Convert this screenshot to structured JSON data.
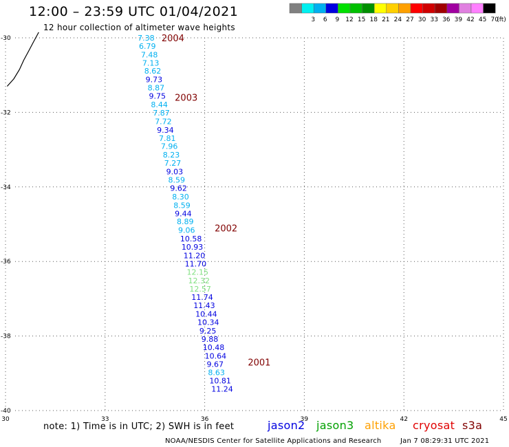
{
  "header": {
    "title": "12:00 – 23:59 UTC 01/04/2021",
    "subtitle": "12 hour collection of altimeter wave heights"
  },
  "legend": {
    "unit": "(ft)",
    "bins": [
      {
        "color": "#808080",
        "label": ""
      },
      {
        "color": "#00f0f0",
        "label": "3"
      },
      {
        "color": "#00b0f0",
        "label": "6"
      },
      {
        "color": "#0000e0",
        "label": "9"
      },
      {
        "color": "#00e000",
        "label": "12"
      },
      {
        "color": "#00c000",
        "label": "15"
      },
      {
        "color": "#009000",
        "label": "18"
      },
      {
        "color": "#ffff00",
        "label": "21"
      },
      {
        "color": "#ffd000",
        "label": "24"
      },
      {
        "color": "#ffa000",
        "label": "27"
      },
      {
        "color": "#ff0000",
        "label": "30"
      },
      {
        "color": "#d00000",
        "label": "33"
      },
      {
        "color": "#a00000",
        "label": "36"
      },
      {
        "color": "#a000a0",
        "label": "39"
      },
      {
        "color": "#e080e0",
        "label": "42"
      },
      {
        "color": "#ff80ff",
        "label": "45"
      },
      {
        "color": "#000000",
        "label": "70"
      }
    ]
  },
  "map": {
    "lon_range": [
      30,
      45
    ],
    "lat_range": [
      -40,
      -30
    ],
    "x_ticks": [
      "30",
      "33",
      "36",
      "39",
      "42",
      "45"
    ],
    "y_ticks": [
      "-30",
      "-32",
      "-34",
      "-36",
      "-38",
      "-40"
    ],
    "grid": "dotted"
  },
  "track_labels": [
    {
      "text": "2004",
      "lon": 34.7,
      "lat": -30.0
    },
    {
      "text": "2003",
      "lon": 35.1,
      "lat": -31.6
    },
    {
      "text": "2002",
      "lon": 36.3,
      "lat": -35.1
    },
    {
      "text": "2001",
      "lon": 37.3,
      "lat": -38.7
    }
  ],
  "observations": [
    {
      "swh": "7.38",
      "lon": 33.98,
      "lat": -30.0,
      "color": "#00b0f0"
    },
    {
      "swh": "6.79",
      "lon": 34.02,
      "lat": -30.22,
      "color": "#00b0f0"
    },
    {
      "swh": "7.48",
      "lon": 34.08,
      "lat": -30.45,
      "color": "#00b0f0"
    },
    {
      "swh": "7.13",
      "lon": 34.12,
      "lat": -30.67,
      "color": "#00b0f0"
    },
    {
      "swh": "8.62",
      "lon": 34.18,
      "lat": -30.89,
      "color": "#00b0f0"
    },
    {
      "swh": "9.73",
      "lon": 34.22,
      "lat": -31.12,
      "color": "#0000e0"
    },
    {
      "swh": "8.87",
      "lon": 34.28,
      "lat": -31.34,
      "color": "#00b0f0"
    },
    {
      "swh": "9.75",
      "lon": 34.32,
      "lat": -31.56,
      "color": "#0000e0"
    },
    {
      "swh": "8.44",
      "lon": 34.38,
      "lat": -31.79,
      "color": "#00b0f0"
    },
    {
      "swh": "7.87",
      "lon": 34.44,
      "lat": -32.01,
      "color": "#00b0f0"
    },
    {
      "swh": "7.72",
      "lon": 34.5,
      "lat": -32.24,
      "color": "#00b0f0"
    },
    {
      "swh": "9.34",
      "lon": 34.56,
      "lat": -32.47,
      "color": "#0000e0"
    },
    {
      "swh": "7.81",
      "lon": 34.62,
      "lat": -32.69,
      "color": "#00b0f0"
    },
    {
      "swh": "7.96",
      "lon": 34.68,
      "lat": -32.91,
      "color": "#00b0f0"
    },
    {
      "swh": "8.23",
      "lon": 34.74,
      "lat": -33.14,
      "color": "#00b0f0"
    },
    {
      "swh": "7.27",
      "lon": 34.78,
      "lat": -33.36,
      "color": "#00b0f0"
    },
    {
      "swh": "9.03",
      "lon": 34.84,
      "lat": -33.59,
      "color": "#0000e0"
    },
    {
      "swh": "8.59",
      "lon": 34.9,
      "lat": -33.81,
      "color": "#00b0f0"
    },
    {
      "swh": "9.62",
      "lon": 34.96,
      "lat": -34.03,
      "color": "#0000e0"
    },
    {
      "swh": "8.30",
      "lon": 35.02,
      "lat": -34.26,
      "color": "#00b0f0"
    },
    {
      "swh": "8.59",
      "lon": 35.06,
      "lat": -34.49,
      "color": "#00b0f0"
    },
    {
      "swh": "9.44",
      "lon": 35.1,
      "lat": -34.71,
      "color": "#0000e0"
    },
    {
      "swh": "8.89",
      "lon": 35.16,
      "lat": -34.93,
      "color": "#00b0f0"
    },
    {
      "swh": "9.06",
      "lon": 35.2,
      "lat": -35.16,
      "color": "#00b0f0"
    },
    {
      "swh": "10.58",
      "lon": 35.26,
      "lat": -35.39,
      "color": "#0000e0"
    },
    {
      "swh": "10.93",
      "lon": 35.3,
      "lat": -35.61,
      "color": "#0000e0"
    },
    {
      "swh": "11.20",
      "lon": 35.36,
      "lat": -35.84,
      "color": "#0000e0"
    },
    {
      "swh": "11.70",
      "lon": 35.4,
      "lat": -36.06,
      "color": "#0000e0"
    },
    {
      "swh": "12.15",
      "lon": 35.46,
      "lat": -36.28,
      "color": "#80e080"
    },
    {
      "swh": "12.32",
      "lon": 35.5,
      "lat": -36.51,
      "color": "#80e080"
    },
    {
      "swh": "12.57",
      "lon": 35.54,
      "lat": -36.73,
      "color": "#80e080"
    },
    {
      "swh": "11.74",
      "lon": 35.6,
      "lat": -36.96,
      "color": "#0000e0"
    },
    {
      "swh": "11.43",
      "lon": 35.66,
      "lat": -37.18,
      "color": "#0000e0"
    },
    {
      "swh": "10.44",
      "lon": 35.72,
      "lat": -37.41,
      "color": "#0000e0"
    },
    {
      "swh": "10.34",
      "lon": 35.78,
      "lat": -37.63,
      "color": "#0000e0"
    },
    {
      "swh": "9.25",
      "lon": 35.84,
      "lat": -37.86,
      "color": "#0000e0"
    },
    {
      "swh": "9.88",
      "lon": 35.9,
      "lat": -38.08,
      "color": "#0000e0"
    },
    {
      "swh": "10.48",
      "lon": 35.94,
      "lat": -38.3,
      "color": "#0000e0"
    },
    {
      "swh": "10.64",
      "lon": 36.0,
      "lat": -38.53,
      "color": "#0000e0"
    },
    {
      "swh": "9.67",
      "lon": 36.06,
      "lat": -38.75,
      "color": "#0000e0"
    },
    {
      "swh": "8.63",
      "lon": 36.1,
      "lat": -38.98,
      "color": "#00b0f0"
    },
    {
      "swh": "10.81",
      "lon": 36.14,
      "lat": -39.2,
      "color": "#0000e0"
    },
    {
      "swh": "11.24",
      "lon": 36.2,
      "lat": -39.42,
      "color": "#0000e0"
    }
  ],
  "coastline": [
    [
      31.0,
      -29.85
    ],
    [
      30.85,
      -30.1
    ],
    [
      30.7,
      -30.35
    ],
    [
      30.55,
      -30.6
    ],
    [
      30.42,
      -30.85
    ],
    [
      30.25,
      -31.1
    ],
    [
      30.05,
      -31.3
    ]
  ],
  "note": "note:  1) Time is in UTC;  2) SWH is in feet",
  "satellites": [
    {
      "name": "jason2",
      "color": "#0000e0"
    },
    {
      "name": "jason3",
      "color": "#00a000"
    },
    {
      "name": "altika",
      "color": "#ffa000"
    },
    {
      "name": "cryosat",
      "color": "#e00000"
    },
    {
      "name": "s3a",
      "color": "#800000"
    }
  ],
  "footer": {
    "credit": "NOAA/NESDIS Center for Satellite Applications and Research",
    "date": "Jan  7 08:29:31 UTC 2021"
  }
}
